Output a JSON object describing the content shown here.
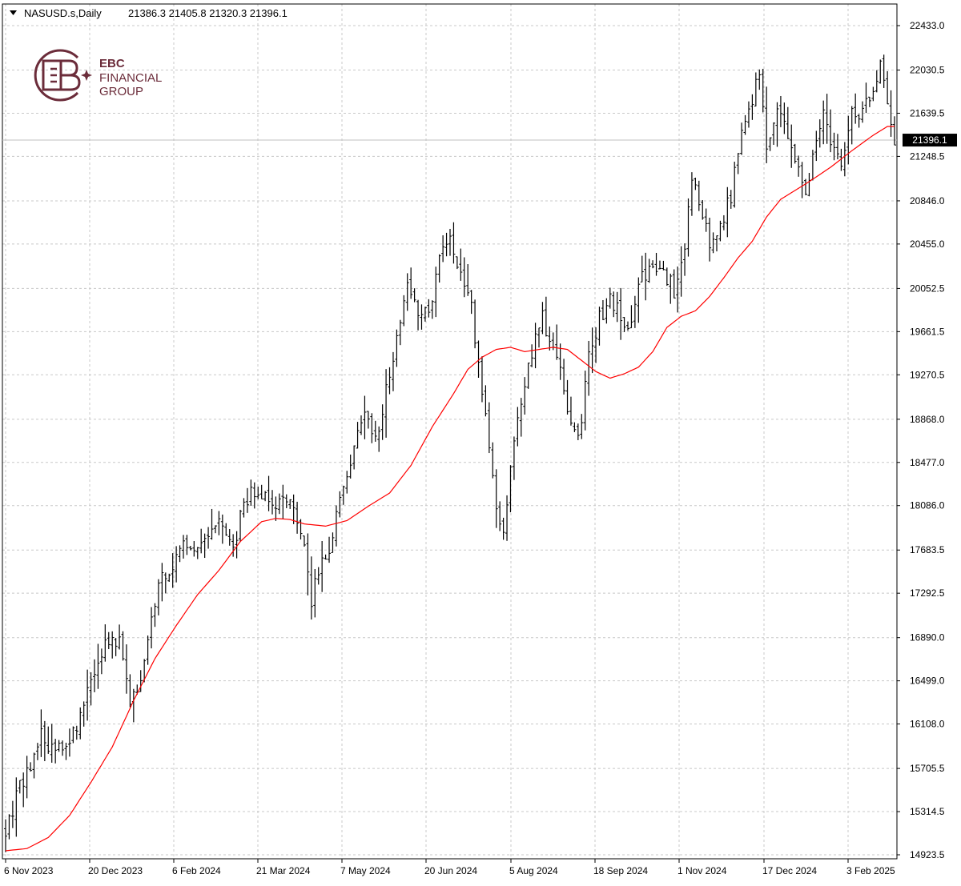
{
  "header": {
    "symbol": "NASUSD.s,Daily",
    "ohlc": "21386.3 21405.8 21320.3 21396.1"
  },
  "logo": {
    "line1": "EBC",
    "line2": "FINANCIAL",
    "line3": "GROUP",
    "color": "#6b2c3a"
  },
  "chart_data": {
    "type": "line",
    "chart_style": "ohlc-bars",
    "symbol": "NASUSD.s",
    "timeframe": "Daily",
    "last_price": 21396.1,
    "last_price_label": "21396.1",
    "ylim": [
      14923.5,
      22433.0
    ],
    "y_ticks": [
      "22433.0",
      "22030.5",
      "21639.5",
      "21248.5",
      "20846.0",
      "20455.0",
      "20052.5",
      "19661.5",
      "19270.5",
      "18868.0",
      "18477.0",
      "18086.0",
      "17683.5",
      "17292.5",
      "16890.0",
      "16499.0",
      "16108.0",
      "15705.5",
      "15314.5",
      "14923.5"
    ],
    "x_ticks": [
      "6 Nov 2023",
      "20 Dec 2023",
      "6 Feb 2024",
      "21 Mar 2024",
      "7 May 2024",
      "20 Jun 2024",
      "5 Aug 2024",
      "18 Sep 2024",
      "1 Nov 2024",
      "17 Dec 2024",
      "3 Feb 2025"
    ],
    "grid": true,
    "colors": {
      "bars": "#000000",
      "moving_average": "#ff0000",
      "grid": "#c8c8c8",
      "price_line": "#c0c0c0"
    },
    "price_path": [
      [
        0,
        15170
      ],
      [
        5,
        15620
      ],
      [
        10,
        15980
      ],
      [
        16,
        15850
      ],
      [
        20,
        16080
      ],
      [
        24,
        16520
      ],
      [
        28,
        16850
      ],
      [
        32,
        16880
      ],
      [
        35,
        16300
      ],
      [
        38,
        16550
      ],
      [
        43,
        17350
      ],
      [
        47,
        17550
      ],
      [
        50,
        17820
      ],
      [
        54,
        17680
      ],
      [
        58,
        17950
      ],
      [
        61,
        17920
      ],
      [
        64,
        17700
      ],
      [
        67,
        18150
      ],
      [
        71,
        18200
      ],
      [
        74,
        18080
      ],
      [
        78,
        18200
      ],
      [
        81,
        18100
      ],
      [
        84,
        17700
      ],
      [
        86,
        17250
      ],
      [
        89,
        17550
      ],
      [
        92,
        17800
      ],
      [
        95,
        18250
      ],
      [
        98,
        18650
      ],
      [
        101,
        18850
      ],
      [
        104,
        18700
      ],
      [
        107,
        19100
      ],
      [
        110,
        19600
      ],
      [
        113,
        20020
      ],
      [
        116,
        19800
      ],
      [
        119,
        19850
      ],
      [
        122,
        20350
      ],
      [
        125,
        20550
      ],
      [
        128,
        20150
      ],
      [
        131,
        19850
      ],
      [
        134,
        19150
      ],
      [
        136,
        18650
      ],
      [
        138,
        18050
      ],
      [
        140,
        17850
      ],
      [
        143,
        18650
      ],
      [
        146,
        19150
      ],
      [
        149,
        19650
      ],
      [
        151,
        19850
      ],
      [
        153,
        19550
      ],
      [
        155,
        19400
      ],
      [
        157,
        19150
      ],
      [
        159,
        18850
      ],
      [
        161,
        18650
      ],
      [
        164,
        19400
      ],
      [
        167,
        19780
      ],
      [
        170,
        19980
      ],
      [
        173,
        19800
      ],
      [
        176,
        19750
      ],
      [
        179,
        20180
      ],
      [
        182,
        20200
      ],
      [
        185,
        20220
      ],
      [
        188,
        20050
      ],
      [
        191,
        20450
      ],
      [
        193,
        21050
      ],
      [
        195,
        20850
      ],
      [
        198,
        20450
      ],
      [
        201,
        20600
      ],
      [
        204,
        20900
      ],
      [
        207,
        21420
      ],
      [
        210,
        21780
      ],
      [
        212,
        22050
      ],
      [
        214,
        21300
      ],
      [
        217,
        21700
      ],
      [
        220,
        21400
      ],
      [
        222,
        21200
      ],
      [
        225,
        20850
      ],
      [
        227,
        21300
      ],
      [
        230,
        21700
      ],
      [
        232,
        21400
      ],
      [
        235,
        21200
      ],
      [
        238,
        21600
      ],
      [
        241,
        21700
      ],
      [
        244,
        21850
      ],
      [
        246,
        22150
      ],
      [
        248,
        21800
      ],
      [
        250,
        21400
      ]
    ],
    "moving_average_path": [
      [
        0,
        14960
      ],
      [
        6,
        14980
      ],
      [
        12,
        15080
      ],
      [
        18,
        15280
      ],
      [
        24,
        15580
      ],
      [
        30,
        15900
      ],
      [
        36,
        16320
      ],
      [
        42,
        16700
      ],
      [
        48,
        17000
      ],
      [
        54,
        17280
      ],
      [
        60,
        17500
      ],
      [
        66,
        17760
      ],
      [
        72,
        17940
      ],
      [
        76,
        17970
      ],
      [
        80,
        17960
      ],
      [
        84,
        17920
      ],
      [
        90,
        17900
      ],
      [
        96,
        17950
      ],
      [
        102,
        18080
      ],
      [
        108,
        18200
      ],
      [
        114,
        18450
      ],
      [
        120,
        18800
      ],
      [
        126,
        19100
      ],
      [
        130,
        19320
      ],
      [
        134,
        19430
      ],
      [
        138,
        19500
      ],
      [
        142,
        19520
      ],
      [
        146,
        19480
      ],
      [
        150,
        19500
      ],
      [
        154,
        19520
      ],
      [
        158,
        19500
      ],
      [
        162,
        19400
      ],
      [
        166,
        19300
      ],
      [
        170,
        19240
      ],
      [
        174,
        19280
      ],
      [
        178,
        19340
      ],
      [
        182,
        19480
      ],
      [
        186,
        19700
      ],
      [
        190,
        19800
      ],
      [
        194,
        19850
      ],
      [
        198,
        19980
      ],
      [
        202,
        20150
      ],
      [
        206,
        20330
      ],
      [
        210,
        20480
      ],
      [
        214,
        20700
      ],
      [
        218,
        20860
      ],
      [
        222,
        20940
      ],
      [
        226,
        21020
      ],
      [
        232,
        21150
      ],
      [
        238,
        21300
      ],
      [
        244,
        21440
      ],
      [
        248,
        21520
      ],
      [
        250,
        21520
      ]
    ]
  }
}
